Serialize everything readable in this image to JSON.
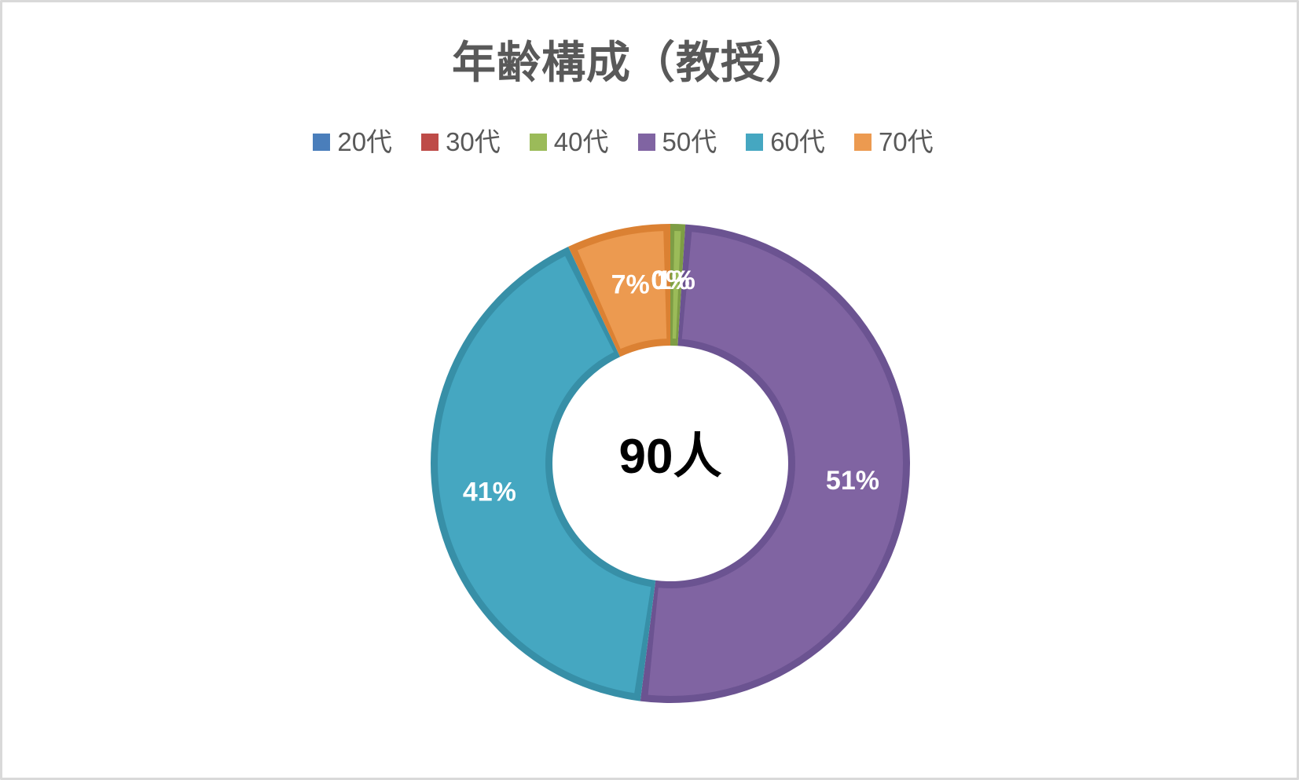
{
  "window": {
    "background": "#ffffff",
    "border_color": "#d9d9d9"
  },
  "title": {
    "text": "年齢構成（教授）",
    "color": "#595959"
  },
  "legend": {
    "position": "top",
    "text_color": "#595959",
    "items": [
      {
        "label": "20代",
        "color": "#4A7EBB"
      },
      {
        "label": "30代",
        "color": "#BE4B48"
      },
      {
        "label": "40代",
        "color": "#9BBB59"
      },
      {
        "label": "50代",
        "color": "#8064A2"
      },
      {
        "label": "60代",
        "color": "#45A7C1"
      },
      {
        "label": "70代",
        "color": "#EC9A50"
      }
    ]
  },
  "chart_data": {
    "type": "pie",
    "subtype": "doughnut",
    "title": "年齢構成（教授）",
    "categories": [
      "20代",
      "30代",
      "40代",
      "50代",
      "60代",
      "70代"
    ],
    "values_percent": [
      0,
      0,
      1,
      51,
      41,
      7
    ],
    "data_labels": [
      "0%",
      "0%",
      "1%",
      "51%",
      "41%",
      "7%"
    ],
    "data_label_color": "#ffffff",
    "total_label": "90人",
    "legend_position": "top",
    "hole_ratio": 0.49,
    "start_angle_deg": 0,
    "direction": "clockwise",
    "slice_fill_colors": [
      "#4A7EBB",
      "#BE4B48",
      "#9BBB59",
      "#8064A2",
      "#45A7C1",
      "#EC9A50"
    ],
    "slice_border_colors": [
      "#39648C",
      "#953B39",
      "#7E9D45",
      "#6B5391",
      "#378FA7",
      "#DB8133"
    ]
  }
}
